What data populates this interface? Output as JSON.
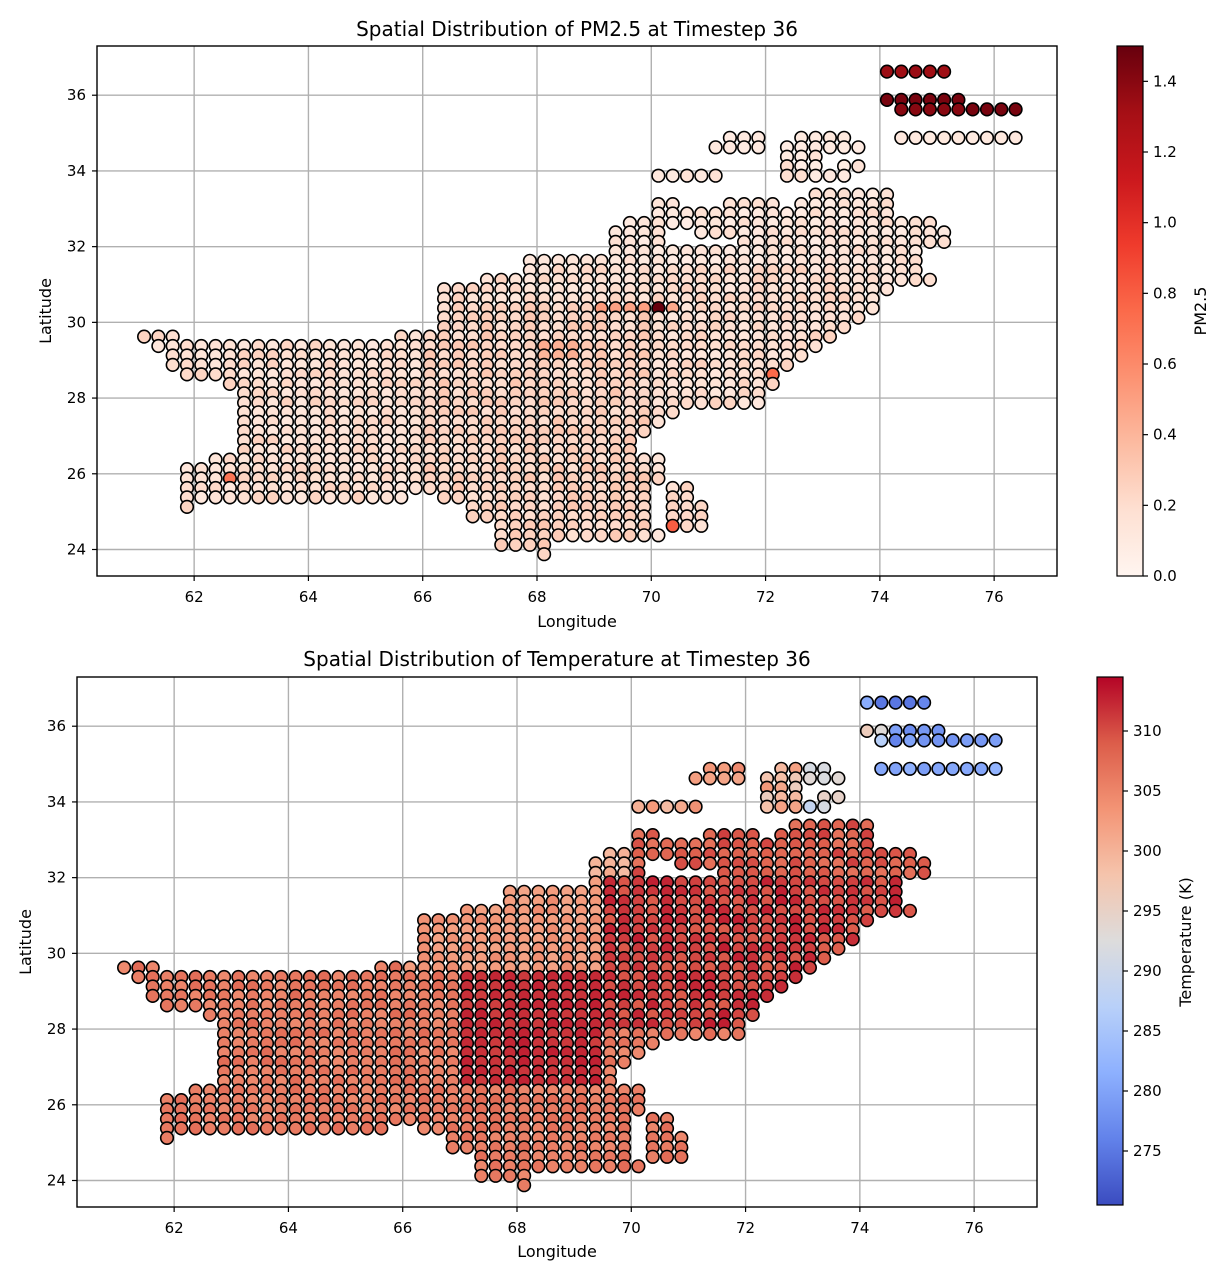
{
  "figure": {
    "panels": [
      {
        "title": "Spatial Distribution of PM2.5 at Timestep 36",
        "xlabel": "Longitude",
        "ylabel": "Latitude",
        "colorbar_label": "PM2.5",
        "x_ticks": [
          "62",
          "64",
          "66",
          "68",
          "70",
          "72",
          "74",
          "76"
        ],
        "y_ticks": [
          "24",
          "26",
          "28",
          "30",
          "32",
          "34",
          "36"
        ],
        "colorbar_ticks": [
          "0.0",
          "0.2",
          "0.4",
          "0.6",
          "0.8",
          "1.0",
          "1.2",
          "1.4"
        ]
      },
      {
        "title": "Spatial Distribution of Temperature at Timestep 36",
        "xlabel": "Longitude",
        "ylabel": "Latitude",
        "colorbar_label": "Temperature (K)",
        "x_ticks": [
          "62",
          "64",
          "66",
          "68",
          "70",
          "72",
          "74",
          "76"
        ],
        "y_ticks": [
          "24",
          "26",
          "28",
          "30",
          "32",
          "34",
          "36"
        ],
        "colorbar_ticks": [
          "275",
          "280",
          "285",
          "290",
          "295",
          "300",
          "305",
          "310"
        ]
      }
    ]
  },
  "chart_data": [
    {
      "type": "scatter",
      "title": "Spatial Distribution of PM2.5 at Timestep 36",
      "xlabel": "Longitude",
      "ylabel": "Latitude",
      "colorbar_label": "PM2.5",
      "colormap": "Reds",
      "xlim": [
        60.3,
        77.1
      ],
      "ylim": [
        23.3,
        37.3
      ],
      "clim": [
        0.0,
        1.5
      ],
      "grid": true,
      "grid_step_deg": [
        0.25,
        0.25
      ],
      "land_mask_rows": [
        {
          "lat": 36.625,
          "ranges": [
            [
              74.125,
              75.125
            ]
          ]
        },
        {
          "lat": 35.875,
          "ranges": [
            [
              74.125,
              75.375
            ]
          ]
        },
        {
          "lat": 35.625,
          "ranges": [
            [
              74.375,
              76.375
            ]
          ]
        },
        {
          "lat": 34.875,
          "ranges": [
            [
              74.375,
              76.375
            ]
          ]
        },
        {
          "lat": 34.875,
          "ranges": [
            [
              71.375,
              71.875
            ],
            [
              72.625,
              73.375
            ]
          ]
        },
        {
          "lat": 34.625,
          "ranges": [
            [
              71.125,
              71.875
            ],
            [
              72.375,
              73.625
            ]
          ]
        },
        {
          "lat": 34.375,
          "ranges": [
            [
              72.375,
              72.875
            ]
          ]
        },
        {
          "lat": 34.125,
          "ranges": [
            [
              72.375,
              72.875
            ],
            [
              73.375,
              73.625
            ]
          ]
        },
        {
          "lat": 33.875,
          "ranges": [
            [
              70.125,
              70.375
            ],
            [
              70.625,
              71.125
            ],
            [
              72.375,
              72.875
            ],
            [
              73.125,
              73.375
            ]
          ]
        },
        {
          "lat": 33.375,
          "ranges": [
            [
              72.875,
              74.125
            ]
          ]
        },
        {
          "lat": 33.125,
          "ranges": [
            [
              70.125,
              70.375
            ],
            [
              71.375,
              72.125
            ],
            [
              72.625,
              74.125
            ]
          ]
        },
        {
          "lat": 32.875,
          "ranges": [
            [
              70.125,
              72.125
            ],
            [
              72.375,
              73.625
            ],
            [
              73.875,
              74.125
            ]
          ]
        },
        {
          "lat": 32.625,
          "ranges": [
            [
              69.625,
              72.125
            ],
            [
              72.375,
              74.875
            ]
          ]
        },
        {
          "lat": 32.375,
          "ranges": [
            [
              69.375,
              70.125
            ],
            [
              70.875,
              75.125
            ]
          ]
        },
        {
          "lat": 32.125,
          "ranges": [
            [
              69.375,
              70.125
            ],
            [
              71.625,
              75.125
            ]
          ]
        },
        {
          "lat": 31.875,
          "ranges": [
            [
              69.375,
              74.625
            ]
          ]
        },
        {
          "lat": 31.625,
          "ranges": [
            [
              67.875,
              74.625
            ]
          ]
        },
        {
          "lat": 31.375,
          "ranges": [
            [
              67.875,
              74.625
            ]
          ]
        },
        {
          "lat": 31.125,
          "ranges": [
            [
              67.125,
              74.875
            ]
          ]
        },
        {
          "lat": 30.875,
          "ranges": [
            [
              66.375,
              74.125
            ]
          ]
        },
        {
          "lat": 30.625,
          "ranges": [
            [
              66.375,
              73.875
            ]
          ]
        },
        {
          "lat": 30.375,
          "ranges": [
            [
              66.375,
              73.875
            ]
          ]
        },
        {
          "lat": 30.125,
          "ranges": [
            [
              66.375,
              73.625
            ]
          ]
        },
        {
          "lat": 29.875,
          "ranges": [
            [
              66.375,
              73.375
            ]
          ]
        },
        {
          "lat": 29.625,
          "ranges": [
            [
              61.125,
              61.625
            ],
            [
              65.625,
              73.125
            ]
          ]
        },
        {
          "lat": 29.375,
          "ranges": [
            [
              61.375,
              65.375
            ],
            [
              65.625,
              72.875
            ]
          ]
        },
        {
          "lat": 29.125,
          "ranges": [
            [
              61.625,
              72.625
            ]
          ]
        },
        {
          "lat": 28.875,
          "ranges": [
            [
              61.625,
              72.375
            ]
          ]
        },
        {
          "lat": 28.625,
          "ranges": [
            [
              61.875,
              72.125
            ]
          ]
        },
        {
          "lat": 28.375,
          "ranges": [
            [
              62.625,
              72.125
            ]
          ]
        },
        {
          "lat": 28.125,
          "ranges": [
            [
              62.875,
              71.875
            ]
          ]
        },
        {
          "lat": 27.875,
          "ranges": [
            [
              62.875,
              71.875
            ]
          ]
        },
        {
          "lat": 27.625,
          "ranges": [
            [
              62.875,
              70.375
            ]
          ]
        },
        {
          "lat": 27.375,
          "ranges": [
            [
              62.875,
              70.125
            ]
          ]
        },
        {
          "lat": 27.125,
          "ranges": [
            [
              62.875,
              69.875
            ]
          ]
        },
        {
          "lat": 26.875,
          "ranges": [
            [
              62.875,
              69.625
            ]
          ]
        },
        {
          "lat": 26.625,
          "ranges": [
            [
              62.875,
              69.625
            ]
          ]
        },
        {
          "lat": 26.375,
          "ranges": [
            [
              62.375,
              70.125
            ]
          ]
        },
        {
          "lat": 26.125,
          "ranges": [
            [
              61.875,
              70.125
            ]
          ]
        },
        {
          "lat": 25.875,
          "ranges": [
            [
              61.875,
              70.125
            ]
          ]
        },
        {
          "lat": 25.625,
          "ranges": [
            [
              61.875,
              69.875
            ],
            [
              70.375,
              70.625
            ]
          ]
        },
        {
          "lat": 25.375,
          "ranges": [
            [
              61.875,
              65.625
            ],
            [
              66.375,
              69.875
            ],
            [
              70.375,
              70.625
            ]
          ]
        },
        {
          "lat": 25.125,
          "ranges": [
            [
              61.875,
              61.875
            ],
            [
              66.875,
              69.875
            ],
            [
              70.375,
              70.875
            ]
          ]
        },
        {
          "lat": 24.875,
          "ranges": [
            [
              66.875,
              69.875
            ],
            [
              70.375,
              70.875
            ]
          ]
        },
        {
          "lat": 24.625,
          "ranges": [
            [
              67.375,
              69.875
            ],
            [
              70.375,
              70.875
            ]
          ]
        },
        {
          "lat": 24.375,
          "ranges": [
            [
              67.375,
              70.125
            ]
          ]
        },
        {
          "lat": 24.125,
          "ranges": [
            [
              67.375,
              68.125
            ]
          ]
        },
        {
          "lat": 23.875,
          "ranges": [
            [
              68.125,
              68.125
            ]
          ]
        }
      ],
      "value_model": "approx. 0.06–0.30 over most of the country; 0.55–0.85 along lat 30.4 (lon 69.9–70.6), lat 28.6 (lon 72.1) and lat 24.7 (lon 70.4); near 1.25–1.5 in the far-north rows at lat 36.6 and 35.6–35.9"
    },
    {
      "type": "scatter",
      "title": "Spatial Distribution of Temperature at Timestep 36",
      "xlabel": "Longitude",
      "ylabel": "Latitude",
      "colorbar_label": "Temperature (K)",
      "colormap": "coolwarm",
      "xlim": [
        60.3,
        77.1
      ],
      "ylim": [
        23.3,
        37.3
      ],
      "clim": [
        270.5,
        314.5
      ],
      "grid": true,
      "value_model": "approx. 305–309 K in the west and south, 310–313 K in the east-central plains, 296–301 K along the northern rim around lat 33–35, and 272–290 K in the far-north rows above lat 34.5"
    }
  ]
}
